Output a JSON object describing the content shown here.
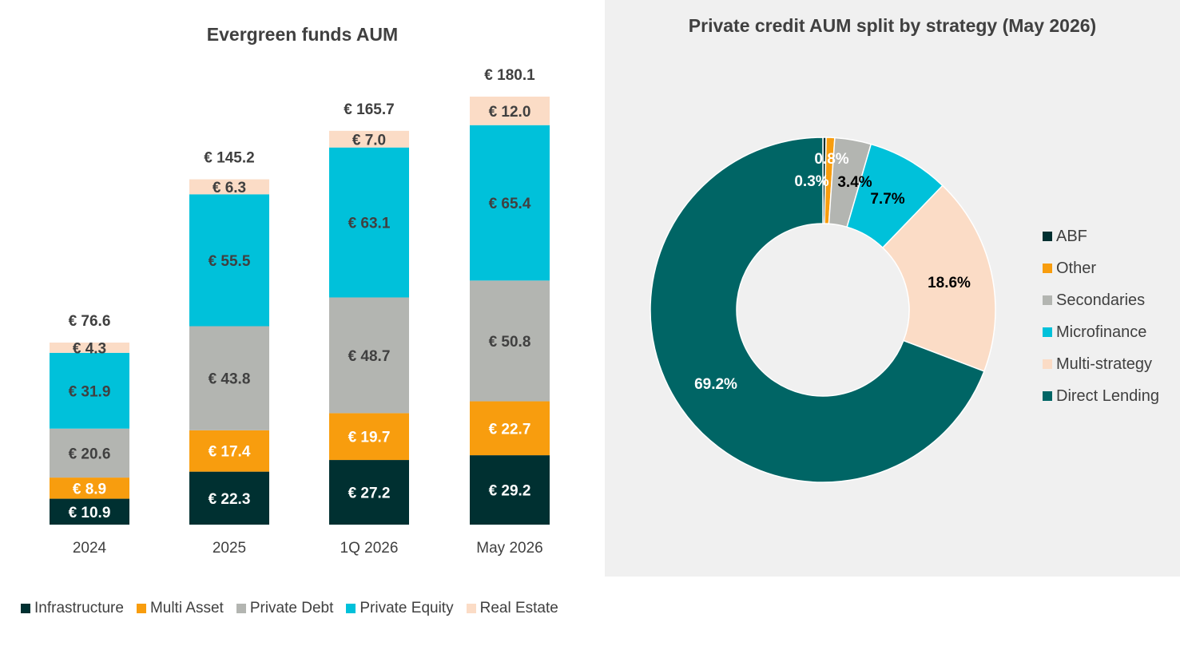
{
  "chart_data": [
    {
      "type": "bar",
      "stacked": true,
      "title": "Evergreen funds AUM",
      "categories": [
        "2024",
        "2025",
        "1Q 2026",
        "May 2026"
      ],
      "series": [
        {
          "name": "Infrastructure",
          "color": "#003031",
          "values": [
            10.9,
            22.3,
            27.2,
            29.2
          ],
          "labels": [
            "€ 10.9",
            "€ 22.3",
            "€ 27.2",
            "€ 29.2"
          ]
        },
        {
          "name": "Multi Asset",
          "color": "#f89d0e",
          "values": [
            8.9,
            17.4,
            19.7,
            22.7
          ],
          "labels": [
            "€ 8.9",
            "€ 17.4",
            "€ 19.7",
            "€ 22.7"
          ]
        },
        {
          "name": "Private Debt",
          "color": "#b3b5b1",
          "values": [
            20.6,
            43.8,
            48.7,
            50.8
          ],
          "labels": [
            "€ 20.6",
            "€ 43.8",
            "€ 48.7",
            "€ 50.8"
          ]
        },
        {
          "name": "Private Equity",
          "color": "#00c1da",
          "values": [
            31.9,
            55.5,
            63.1,
            65.4
          ],
          "labels": [
            "€ 31.9",
            "€ 55.5",
            "€ 63.1",
            "€ 65.4"
          ]
        },
        {
          "name": "Real Estate",
          "color": "#fbdcc6",
          "values": [
            4.3,
            6.3,
            7.0,
            12.0
          ],
          "labels": [
            "€ 4.3",
            "€ 6.3",
            "€ 7.0",
            "€ 12.0"
          ]
        }
      ],
      "totals": [
        76.6,
        145.2,
        165.7,
        180.1
      ],
      "total_labels": [
        "€ 76.6",
        "€ 145.2",
        "€ 165.7",
        "€ 180.1"
      ],
      "ylim": [
        0,
        180.1
      ],
      "grid": false,
      "legend": "bottom"
    },
    {
      "type": "pie",
      "donut": true,
      "title": "Private credit AUM split by strategy (May 2026)",
      "slices": [
        {
          "name": "ABF",
          "value": 0.3,
          "label": "0.3%",
          "color": "#003031"
        },
        {
          "name": "Other",
          "value": 0.8,
          "label": "0.8%",
          "color": "#f89d0e"
        },
        {
          "name": "Secondaries",
          "value": 3.4,
          "label": "3.4%",
          "color": "#b3b5b1"
        },
        {
          "name": "Microfinance",
          "value": 7.7,
          "label": "7.7%",
          "color": "#00c1da"
        },
        {
          "name": "Multi-strategy",
          "value": 18.6,
          "label": "18.6%",
          "color": "#fbdcc6"
        },
        {
          "name": "Direct Lending",
          "value": 69.2,
          "label": "69.2%",
          "color": "#006565"
        }
      ],
      "legend": "right"
    }
  ]
}
